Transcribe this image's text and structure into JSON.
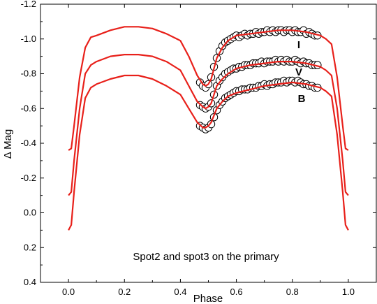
{
  "chart_data": {
    "type": "scatter",
    "xlabel": "Phase",
    "ylabel": "Δ Mag",
    "xlim": [
      -0.1,
      1.1
    ],
    "ylim": [
      0.4,
      -1.2
    ],
    "y_axis_inverted": true,
    "x_ticks": [
      0.0,
      0.2,
      0.4,
      0.6,
      0.8,
      1.0
    ],
    "x_tick_labels": [
      "0.0",
      "0.2",
      "0.4",
      "0.6",
      "0.8",
      "1.0"
    ],
    "y_ticks": [
      -1.2,
      -1.0,
      -0.8,
      -0.6,
      -0.4,
      -0.2,
      0.0,
      0.2,
      0.4
    ],
    "y_tick_labels": [
      "-1.2",
      "-1.0",
      "-0.8",
      "-0.6",
      "-0.4",
      "-0.2",
      "0.0",
      "0.2",
      "0.4"
    ],
    "annotation": "Spot2 and spot3 on the primary",
    "grid": false,
    "legend": "none",
    "series": [
      {
        "name": "I",
        "model_color": "#e8201a",
        "model_x": [
          0.0,
          0.01,
          0.02,
          0.04,
          0.06,
          0.08,
          0.1,
          0.15,
          0.2,
          0.25,
          0.3,
          0.35,
          0.4,
          0.43,
          0.46,
          0.48,
          0.49,
          0.5,
          0.51,
          0.52,
          0.53,
          0.55,
          0.57,
          0.6,
          0.65,
          0.7,
          0.75,
          0.8,
          0.85,
          0.9,
          0.92,
          0.94,
          0.96,
          0.98,
          0.99,
          1.0
        ],
        "model_y": [
          -0.36,
          -0.37,
          -0.5,
          -0.78,
          -0.95,
          -1.01,
          -1.02,
          -1.05,
          -1.07,
          -1.07,
          -1.06,
          -1.03,
          -0.99,
          -0.9,
          -0.79,
          -0.74,
          -0.73,
          -0.74,
          -0.77,
          -0.83,
          -0.89,
          -0.95,
          -0.99,
          -1.02,
          -1.03,
          -1.04,
          -1.05,
          -1.05,
          -1.04,
          -1.02,
          -1.0,
          -0.97,
          -0.78,
          -0.5,
          -0.37,
          -0.36
        ],
        "obs_x": [
          0.47,
          0.48,
          0.49,
          0.5,
          0.51,
          0.52,
          0.53,
          0.54,
          0.55,
          0.56,
          0.57,
          0.58,
          0.59,
          0.6,
          0.61,
          0.62,
          0.63,
          0.64,
          0.65,
          0.66,
          0.67,
          0.68,
          0.69,
          0.7,
          0.71,
          0.72,
          0.73,
          0.74,
          0.75,
          0.76,
          0.77,
          0.78,
          0.79,
          0.8,
          0.81,
          0.82,
          0.83,
          0.84,
          0.85,
          0.86,
          0.87,
          0.88,
          0.89
        ],
        "obs_y": [
          -0.75,
          -0.73,
          -0.72,
          -0.74,
          -0.78,
          -0.84,
          -0.89,
          -0.93,
          -0.96,
          -0.98,
          -0.99,
          -1.0,
          -1.01,
          -1.02,
          -1.01,
          -1.02,
          -1.03,
          -1.02,
          -1.03,
          -1.03,
          -1.04,
          -1.03,
          -1.04,
          -1.04,
          -1.05,
          -1.04,
          -1.05,
          -1.04,
          -1.05,
          -1.05,
          -1.04,
          -1.05,
          -1.05,
          -1.04,
          -1.05,
          -1.04,
          -1.04,
          -1.05,
          -1.03,
          -1.04,
          -1.03,
          -1.02,
          -1.02
        ]
      },
      {
        "name": "V",
        "model_color": "#e8201a",
        "model_x": [
          0.0,
          0.01,
          0.02,
          0.04,
          0.06,
          0.08,
          0.1,
          0.15,
          0.2,
          0.25,
          0.3,
          0.35,
          0.4,
          0.43,
          0.46,
          0.48,
          0.49,
          0.5,
          0.51,
          0.52,
          0.53,
          0.55,
          0.57,
          0.6,
          0.65,
          0.7,
          0.75,
          0.8,
          0.85,
          0.9,
          0.92,
          0.94,
          0.96,
          0.98,
          0.99,
          1.0
        ],
        "model_y": [
          -0.1,
          -0.12,
          -0.3,
          -0.6,
          -0.8,
          -0.85,
          -0.87,
          -0.9,
          -0.91,
          -0.91,
          -0.9,
          -0.87,
          -0.82,
          -0.73,
          -0.64,
          -0.61,
          -0.6,
          -0.61,
          -0.63,
          -0.68,
          -0.73,
          -0.77,
          -0.8,
          -0.83,
          -0.85,
          -0.86,
          -0.87,
          -0.87,
          -0.86,
          -0.84,
          -0.82,
          -0.79,
          -0.6,
          -0.3,
          -0.12,
          -0.1
        ],
        "obs_x": [
          0.47,
          0.48,
          0.49,
          0.5,
          0.51,
          0.52,
          0.53,
          0.54,
          0.55,
          0.56,
          0.57,
          0.58,
          0.59,
          0.6,
          0.61,
          0.62,
          0.63,
          0.64,
          0.65,
          0.66,
          0.67,
          0.68,
          0.69,
          0.7,
          0.71,
          0.72,
          0.73,
          0.74,
          0.75,
          0.76,
          0.77,
          0.78,
          0.79,
          0.8,
          0.81,
          0.82,
          0.83,
          0.84,
          0.85,
          0.86,
          0.87,
          0.88,
          0.89
        ],
        "obs_y": [
          -0.62,
          -0.61,
          -0.6,
          -0.61,
          -0.63,
          -0.68,
          -0.73,
          -0.76,
          -0.78,
          -0.8,
          -0.81,
          -0.82,
          -0.83,
          -0.83,
          -0.84,
          -0.84,
          -0.85,
          -0.85,
          -0.85,
          -0.86,
          -0.86,
          -0.86,
          -0.87,
          -0.86,
          -0.87,
          -0.87,
          -0.87,
          -0.88,
          -0.87,
          -0.88,
          -0.87,
          -0.88,
          -0.87,
          -0.87,
          -0.88,
          -0.87,
          -0.86,
          -0.87,
          -0.86,
          -0.86,
          -0.85,
          -0.85,
          -0.85
        ]
      },
      {
        "name": "B",
        "model_color": "#e8201a",
        "model_x": [
          0.0,
          0.01,
          0.02,
          0.04,
          0.06,
          0.08,
          0.1,
          0.15,
          0.2,
          0.25,
          0.3,
          0.35,
          0.4,
          0.43,
          0.46,
          0.48,
          0.49,
          0.5,
          0.51,
          0.52,
          0.53,
          0.55,
          0.57,
          0.6,
          0.65,
          0.7,
          0.75,
          0.8,
          0.85,
          0.9,
          0.92,
          0.94,
          0.96,
          0.98,
          0.99,
          1.0
        ],
        "model_y": [
          0.1,
          0.07,
          -0.12,
          -0.45,
          -0.66,
          -0.72,
          -0.74,
          -0.77,
          -0.79,
          -0.79,
          -0.77,
          -0.73,
          -0.68,
          -0.6,
          -0.52,
          -0.49,
          -0.49,
          -0.5,
          -0.52,
          -0.56,
          -0.6,
          -0.64,
          -0.67,
          -0.69,
          -0.71,
          -0.73,
          -0.74,
          -0.75,
          -0.74,
          -0.72,
          -0.7,
          -0.67,
          -0.45,
          -0.12,
          0.07,
          0.1
        ],
        "obs_x": [
          0.47,
          0.48,
          0.49,
          0.5,
          0.51,
          0.52,
          0.53,
          0.54,
          0.55,
          0.56,
          0.57,
          0.58,
          0.59,
          0.6,
          0.61,
          0.62,
          0.63,
          0.64,
          0.65,
          0.66,
          0.67,
          0.68,
          0.69,
          0.7,
          0.71,
          0.72,
          0.73,
          0.74,
          0.75,
          0.76,
          0.77,
          0.78,
          0.79,
          0.8,
          0.81,
          0.82,
          0.83,
          0.84,
          0.85,
          0.86,
          0.87,
          0.88,
          0.89
        ],
        "obs_y": [
          -0.5,
          -0.49,
          -0.48,
          -0.49,
          -0.51,
          -0.55,
          -0.59,
          -0.62,
          -0.64,
          -0.66,
          -0.67,
          -0.68,
          -0.69,
          -0.7,
          -0.7,
          -0.71,
          -0.71,
          -0.71,
          -0.72,
          -0.72,
          -0.72,
          -0.73,
          -0.73,
          -0.74,
          -0.73,
          -0.74,
          -0.74,
          -0.75,
          -0.75,
          -0.75,
          -0.76,
          -0.75,
          -0.76,
          -0.76,
          -0.75,
          -0.76,
          -0.75,
          -0.74,
          -0.74,
          -0.73,
          -0.73,
          -0.72,
          -0.72
        ]
      }
    ]
  }
}
